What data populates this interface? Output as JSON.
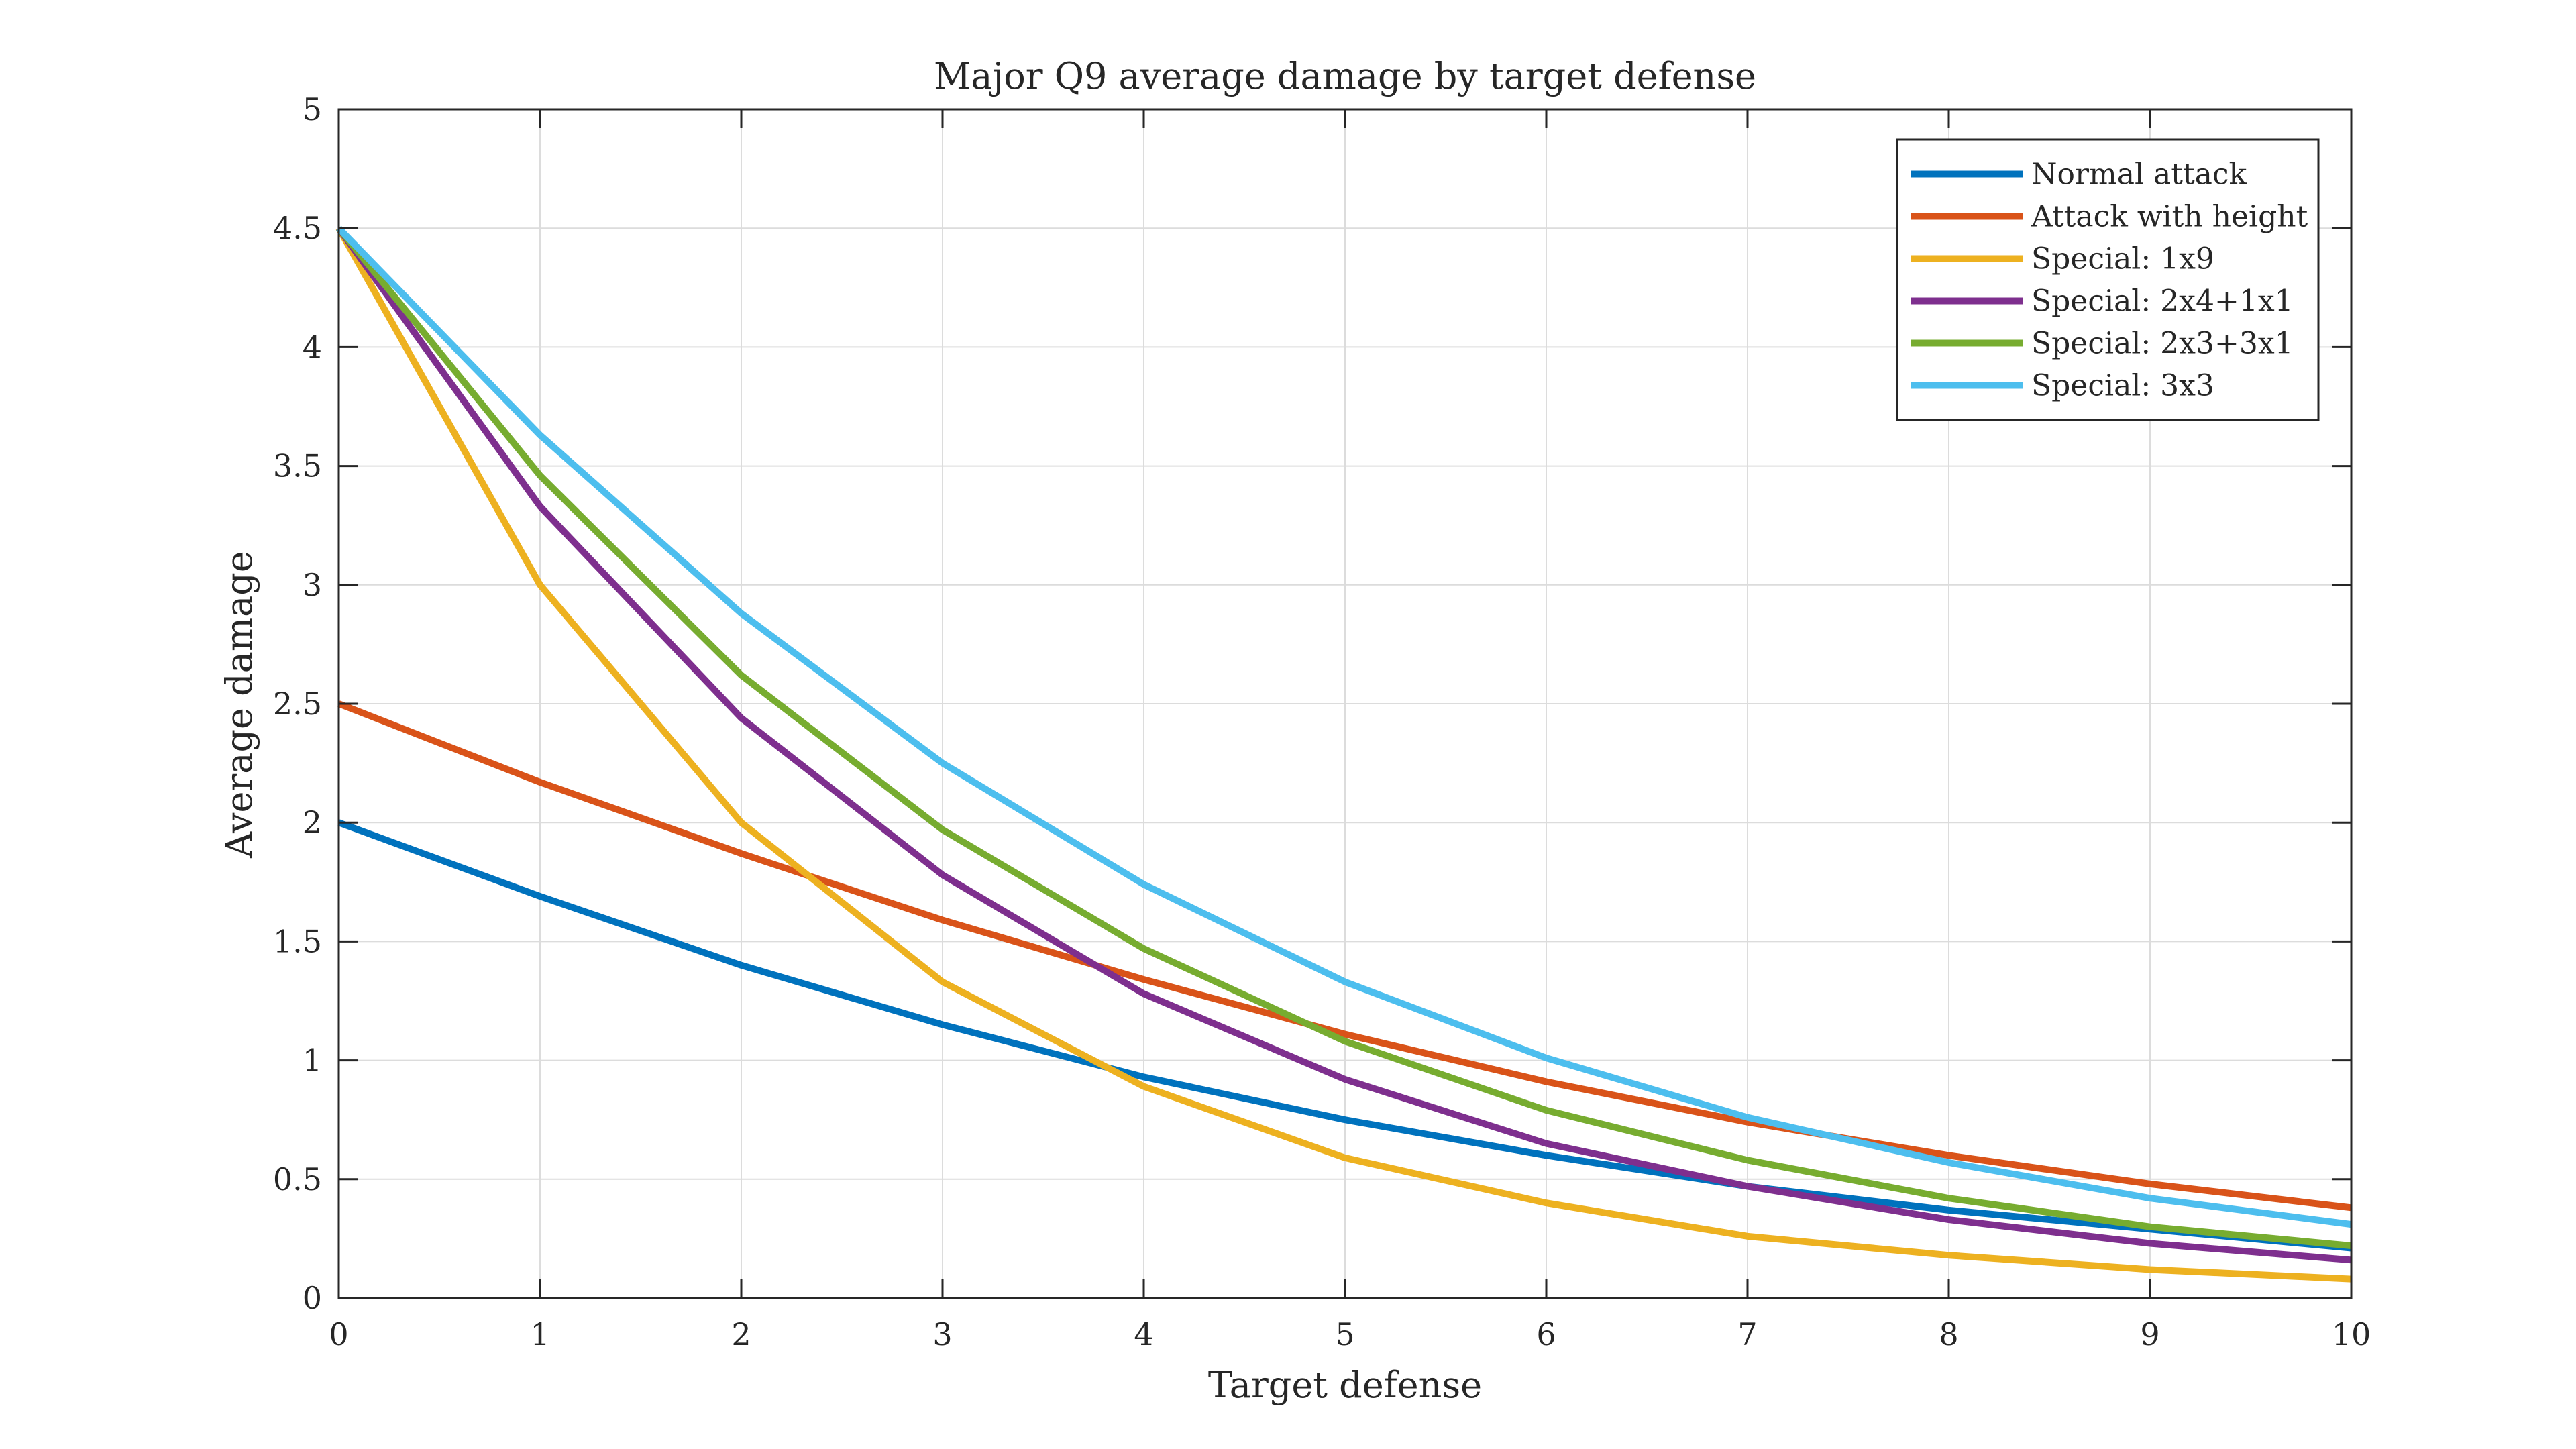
{
  "chart_data": {
    "type": "line",
    "title": "Major Q9 average damage by target defense",
    "xlabel": "Target defense",
    "ylabel": "Average damage",
    "xlim": [
      0,
      10
    ],
    "ylim": [
      0,
      5
    ],
    "x": [
      0,
      1,
      2,
      3,
      4,
      5,
      6,
      7,
      8,
      9,
      10
    ],
    "x_ticks": [
      "0",
      "1",
      "2",
      "3",
      "4",
      "5",
      "6",
      "7",
      "8",
      "9",
      "10"
    ],
    "y_tick_values": [
      0,
      0.5,
      1,
      1.5,
      2,
      2.5,
      3,
      3.5,
      4,
      4.5,
      5
    ],
    "y_ticks": [
      "0",
      "0.5",
      "1",
      "1.5",
      "2",
      "2.5",
      "3",
      "3.5",
      "4",
      "4.5",
      "5"
    ],
    "grid": true,
    "legend_position": "top-right",
    "series": [
      {
        "name": "Normal attack",
        "color": "#0072BD",
        "values": [
          2.0,
          1.69,
          1.4,
          1.15,
          0.93,
          0.75,
          0.6,
          0.47,
          0.37,
          0.29,
          0.21
        ]
      },
      {
        "name": "Attack with height",
        "color": "#D95319",
        "values": [
          2.5,
          2.17,
          1.87,
          1.59,
          1.34,
          1.11,
          0.91,
          0.74,
          0.6,
          0.48,
          0.38
        ]
      },
      {
        "name": "Special: 1x9",
        "color": "#EDB120",
        "values": [
          4.5,
          3.0,
          2.0,
          1.33,
          0.89,
          0.59,
          0.4,
          0.26,
          0.18,
          0.12,
          0.08
        ]
      },
      {
        "name": "Special: 2x4+1x1",
        "color": "#7E2F8E",
        "values": [
          4.5,
          3.33,
          2.44,
          1.78,
          1.28,
          0.92,
          0.65,
          0.47,
          0.33,
          0.23,
          0.16
        ]
      },
      {
        "name": "Special: 2x3+3x1",
        "color": "#77AC30",
        "values": [
          4.5,
          3.46,
          2.62,
          1.97,
          1.47,
          1.08,
          0.79,
          0.58,
          0.42,
          0.3,
          0.22
        ]
      },
      {
        "name": "Special: 3x3",
        "color": "#4DBEEE",
        "values": [
          4.5,
          3.63,
          2.88,
          2.25,
          1.74,
          1.33,
          1.01,
          0.76,
          0.57,
          0.42,
          0.31
        ]
      }
    ]
  }
}
